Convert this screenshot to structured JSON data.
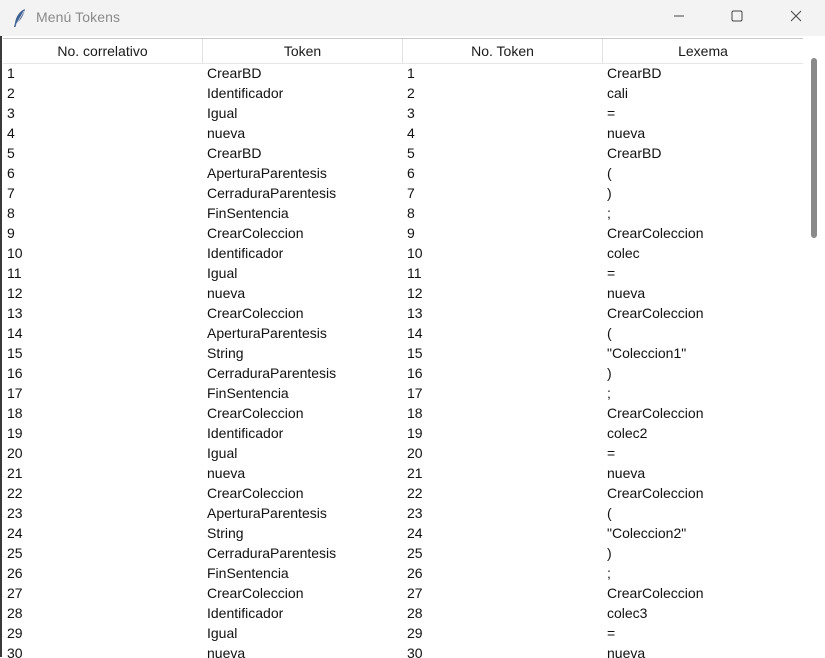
{
  "window": {
    "title": "Menú Tokens"
  },
  "table": {
    "columns": [
      "No. correlativo",
      "Token",
      "No. Token",
      "Lexema"
    ],
    "rows": [
      [
        "1",
        "CrearBD",
        "1",
        "CrearBD"
      ],
      [
        "2",
        "Identificador",
        "2",
        "cali"
      ],
      [
        "3",
        "Igual",
        "3",
        "="
      ],
      [
        "4",
        "nueva",
        "4",
        "nueva"
      ],
      [
        "5",
        "CrearBD",
        "5",
        "CrearBD"
      ],
      [
        "6",
        "AperturaParentesis",
        "6",
        "("
      ],
      [
        "7",
        "CerraduraParentesis",
        "7",
        ")"
      ],
      [
        "8",
        "FinSentencia",
        "8",
        ";"
      ],
      [
        "9",
        "CrearColeccion",
        "9",
        "CrearColeccion"
      ],
      [
        "10",
        "Identificador",
        "10",
        "colec"
      ],
      [
        "11",
        "Igual",
        "11",
        "="
      ],
      [
        "12",
        "nueva",
        "12",
        "nueva"
      ],
      [
        "13",
        "CrearColeccion",
        "13",
        "CrearColeccion"
      ],
      [
        "14",
        "AperturaParentesis",
        "14",
        "("
      ],
      [
        "15",
        "String",
        "15",
        "\"Coleccion1\""
      ],
      [
        "16",
        "CerraduraParentesis",
        "16",
        ")"
      ],
      [
        "17",
        "FinSentencia",
        "17",
        ";"
      ],
      [
        "18",
        "CrearColeccion",
        "18",
        "CrearColeccion"
      ],
      [
        "19",
        "Identificador",
        "19",
        "colec2"
      ],
      [
        "20",
        "Igual",
        "20",
        "="
      ],
      [
        "21",
        "nueva",
        "21",
        "nueva"
      ],
      [
        "22",
        "CrearColeccion",
        "22",
        "CrearColeccion"
      ],
      [
        "23",
        "AperturaParentesis",
        "23",
        "("
      ],
      [
        "24",
        "String",
        "24",
        "\"Coleccion2\""
      ],
      [
        "25",
        "CerraduraParentesis",
        "25",
        ")"
      ],
      [
        "26",
        "FinSentencia",
        "26",
        ";"
      ],
      [
        "27",
        "CrearColeccion",
        "27",
        "CrearColeccion"
      ],
      [
        "28",
        "Identificador",
        "28",
        "colec3"
      ],
      [
        "29",
        "Igual",
        "29",
        "="
      ],
      [
        "30",
        "nueva",
        "30",
        "nueva"
      ]
    ]
  },
  "icons": {
    "app": "feather-icon",
    "minimize": "minimize-icon",
    "maximize": "maximize-icon",
    "close": "close-icon"
  }
}
